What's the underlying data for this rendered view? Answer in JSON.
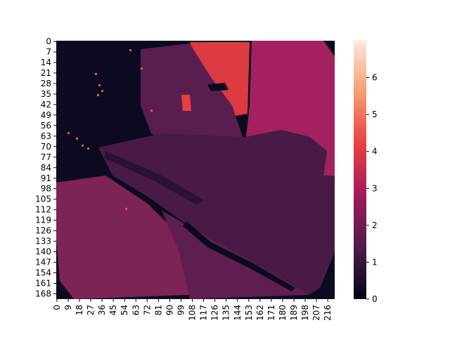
{
  "chart_data": {
    "type": "heatmap",
    "title": "",
    "xlabel": "",
    "ylabel": "",
    "x_range": [
      0,
      221
    ],
    "y_range": [
      0,
      171
    ],
    "x_ticks": [
      "0",
      "9",
      "18",
      "27",
      "36",
      "45",
      "54",
      "63",
      "72",
      "81",
      "90",
      "99",
      "108",
      "117",
      "126",
      "135",
      "144",
      "153",
      "162",
      "171",
      "180",
      "189",
      "198",
      "207",
      "216"
    ],
    "y_ticks": [
      "0",
      "7",
      "14",
      "21",
      "28",
      "35",
      "42",
      "49",
      "56",
      "63",
      "70",
      "77",
      "84",
      "91",
      "98",
      "105",
      "112",
      "119",
      "126",
      "133",
      "140",
      "147",
      "154",
      "161",
      "168"
    ],
    "colorbar": {
      "range": [
        0,
        7
      ],
      "ticks": [
        "0",
        "1",
        "2",
        "3",
        "4",
        "5",
        "6"
      ],
      "colormap": "rocket",
      "stops": [
        "#03051a",
        "#4c1d4b",
        "#a11a5b",
        "#e83f3f",
        "#f69c73",
        "#faebdd"
      ]
    },
    "regions": [
      {
        "name": "background-left",
        "approx_value": 0.15
      },
      {
        "name": "right-panel",
        "approx_value": 2.4
      },
      {
        "name": "top-hot-spot",
        "approx_value": 3.6
      },
      {
        "name": "subject-body",
        "approx_value": 1.5
      },
      {
        "name": "lower-left",
        "approx_value": 2.0
      }
    ],
    "grid": false,
    "legend": "colorbar-right"
  }
}
